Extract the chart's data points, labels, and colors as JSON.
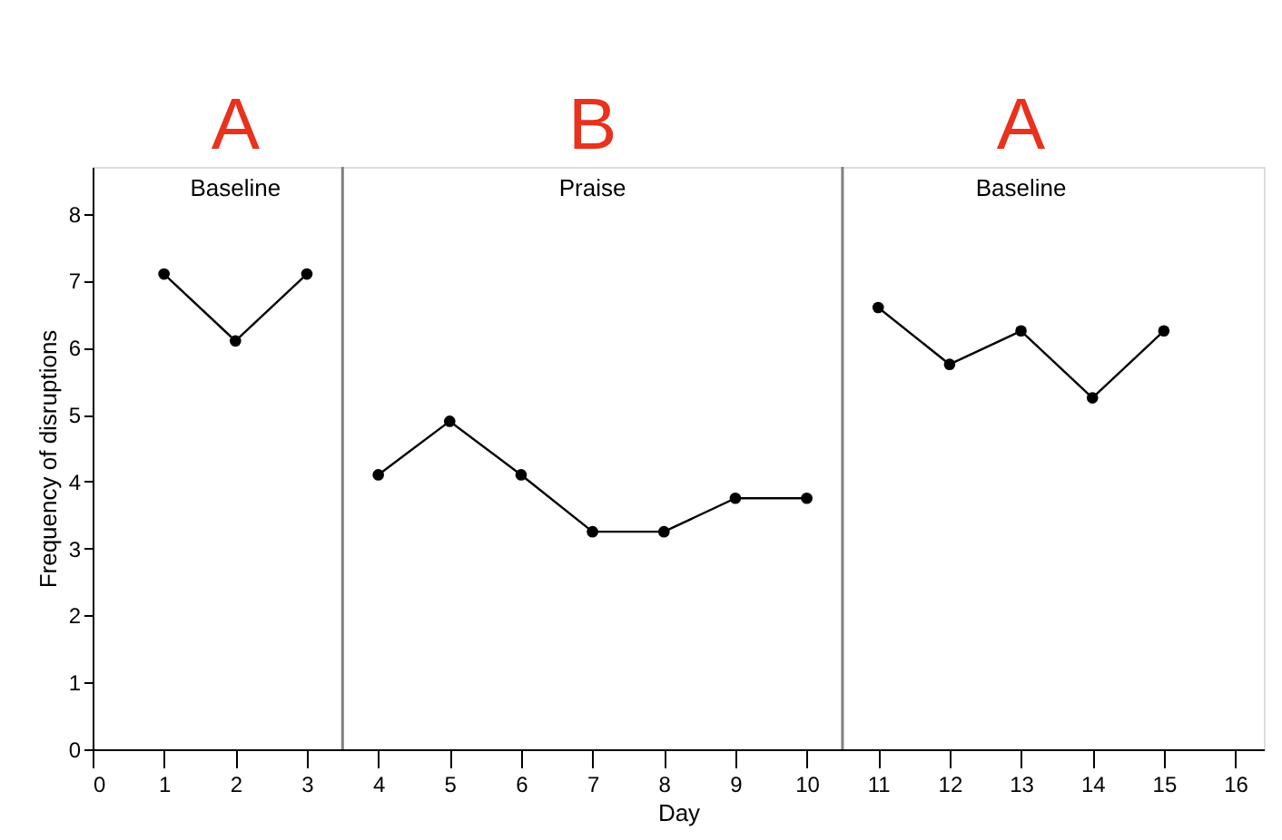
{
  "chart_data": {
    "type": "line",
    "xlabel": "Day",
    "ylabel": "Frequency of disruptions",
    "series": [
      {
        "color": "#000000",
        "x": [
          1,
          2,
          3
        ],
        "values": [
          7.1,
          6.1,
          7.1
        ]
      },
      {
        "color": "#000000",
        "x": [
          4,
          5,
          6,
          7,
          8,
          9,
          10
        ],
        "values": [
          4.1,
          4.9,
          4.1,
          3.25,
          3.25,
          3.75,
          3.75
        ]
      },
      {
        "color": "#000000",
        "x": [
          11,
          12,
          13,
          14,
          15
        ],
        "values": [
          6.6,
          5.75,
          6.25,
          5.25,
          6.25
        ]
      }
    ],
    "xlim": [
      0,
      16.4
    ],
    "xticks": [
      0,
      1,
      2,
      3,
      4,
      5,
      6,
      7,
      8,
      9,
      10,
      11,
      12,
      13,
      14,
      15,
      16
    ],
    "ylim": [
      0,
      8.7
    ],
    "yticks": [
      0,
      1,
      2,
      3,
      4,
      5,
      6,
      7,
      8
    ],
    "ref_lines": [
      {
        "axis": "x",
        "value": 3.5,
        "color": "#808080"
      },
      {
        "axis": "x",
        "value": 10.5,
        "color": "#808080"
      }
    ],
    "annotations": [
      "A",
      "B",
      "A",
      "Baseline",
      "Praise",
      "Baseline"
    ],
    "marker": "circle",
    "line_style": "solid",
    "grid": false
  }
}
